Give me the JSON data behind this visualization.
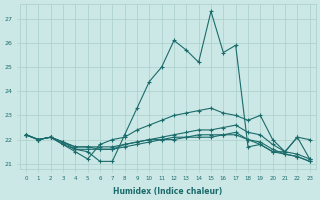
{
  "xlabel": "Humidex (Indice chaleur)",
  "background_color": "#cce8e6",
  "grid_color": "#aacfcc",
  "line_color": "#1a6b6b",
  "xlim": [
    -0.5,
    23.5
  ],
  "ylim": [
    20.8,
    27.6
  ],
  "yticks": [
    21,
    22,
    23,
    24,
    25,
    26,
    27
  ],
  "xticks": [
    0,
    1,
    2,
    3,
    4,
    5,
    6,
    7,
    8,
    9,
    10,
    11,
    12,
    13,
    14,
    15,
    16,
    17,
    18,
    19,
    20,
    21,
    22,
    23
  ],
  "lines": [
    [
      22.2,
      22.0,
      22.1,
      21.8,
      21.6,
      21.5,
      21.1,
      21.1,
      22.2,
      23.3,
      24.4,
      25.0,
      26.1,
      25.7,
      25.2,
      27.3,
      25.6,
      25.9,
      21.7,
      21.8,
      21.5,
      21.5,
      22.1,
      21.2
    ],
    [
      22.2,
      22.0,
      22.1,
      21.8,
      21.5,
      21.2,
      21.8,
      22.0,
      22.1,
      22.4,
      22.6,
      22.8,
      23.0,
      23.1,
      23.2,
      23.3,
      23.1,
      23.0,
      22.8,
      23.0,
      22.0,
      21.5,
      22.1,
      22.0
    ],
    [
      22.2,
      22.0,
      22.1,
      21.9,
      21.6,
      21.6,
      21.6,
      21.6,
      21.8,
      21.9,
      22.0,
      22.1,
      22.2,
      22.3,
      22.4,
      22.4,
      22.5,
      22.6,
      22.3,
      22.2,
      21.8,
      21.5,
      21.4,
      21.2
    ],
    [
      22.2,
      22.0,
      22.1,
      21.9,
      21.7,
      21.7,
      21.7,
      21.7,
      21.8,
      21.9,
      22.0,
      22.0,
      22.1,
      22.1,
      22.2,
      22.2,
      22.2,
      22.3,
      22.0,
      21.9,
      21.6,
      21.4,
      21.3,
      21.1
    ],
    [
      22.2,
      22.0,
      22.1,
      21.9,
      21.7,
      21.7,
      21.6,
      21.6,
      21.7,
      21.8,
      21.9,
      22.0,
      22.0,
      22.1,
      22.1,
      22.1,
      22.2,
      22.2,
      22.0,
      21.8,
      21.5,
      21.4,
      21.3,
      21.1
    ]
  ]
}
